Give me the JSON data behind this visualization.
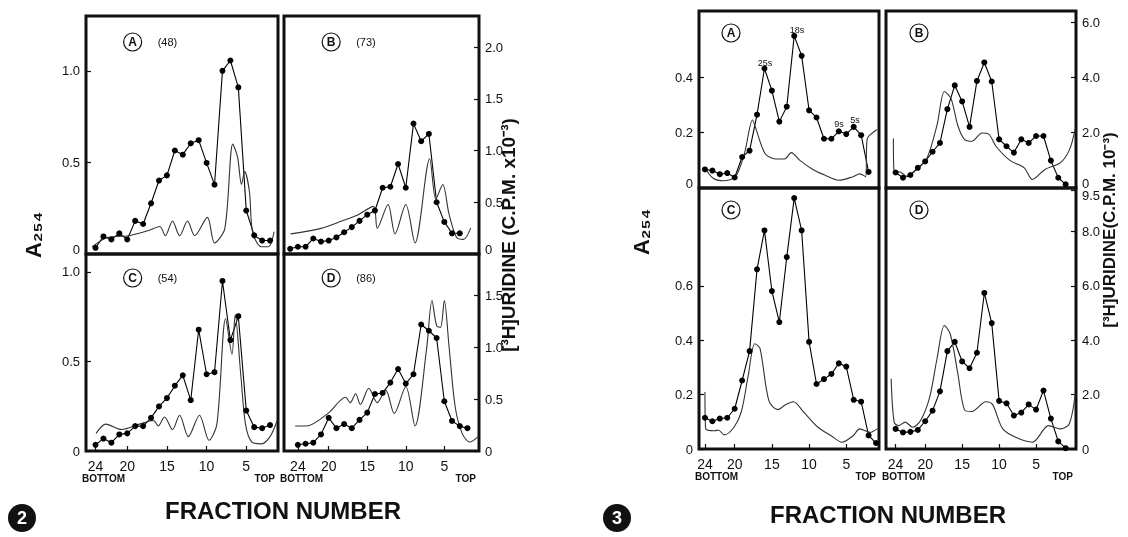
{
  "chart_data": [
    {
      "type": "line",
      "title": "A",
      "subtitle": "(48)",
      "ylabel": "A₂₅₄",
      "xlim": [
        25.2,
        1.0
      ],
      "ylim": [
        0,
        1.3
      ],
      "y2lim": [
        0,
        2.3
      ],
      "yticks": [
        0,
        0.5,
        {
          "value": 1,
          "label": "1.0"
        }
      ],
      "tick_labels": "y",
      "series": [
        {
          "color": "#000000",
          "marker": "circle",
          "axis": "y2",
          "x": [
            24,
            23,
            22,
            21,
            20,
            19,
            18,
            17,
            16,
            15,
            14,
            13,
            12,
            11,
            10,
            9,
            8,
            7,
            6,
            5,
            4,
            3,
            2
          ],
          "values": [
            0.06,
            0.17,
            0.14,
            0.2,
            0.14,
            0.32,
            0.29,
            0.49,
            0.71,
            0.76,
            1.0,
            0.96,
            1.07,
            1.1,
            0.88,
            0.67,
            1.77,
            1.87,
            1.61,
            0.42,
            0.18,
            0.13,
            0.13
          ]
        },
        {
          "color": "#333333",
          "marker": "none",
          "x": [
            24.4,
            22.5,
            19.8,
            17.2,
            15.9,
            15.2,
            14.3,
            13.4,
            12.4,
            11.5,
            9.9,
            9.0,
            7.7,
            6.7,
            6.1,
            5.6,
            5.2,
            4.6,
            4.2,
            3.1,
            2.2,
            1.5
          ],
          "values": [
            0.04,
            0.09,
            0.1,
            0.13,
            0.15,
            0.1,
            0.18,
            0.1,
            0.18,
            0.1,
            0.2,
            0.06,
            0.14,
            0.6,
            0.53,
            0.38,
            0.45,
            0.34,
            0.12,
            0.04,
            0.04,
            0.12
          ]
        }
      ]
    },
    {
      "type": "line",
      "title": "B",
      "subtitle": "(73)",
      "y2label": "[³H]URIDINE (C.P.M. x10⁻³)",
      "xlim": [
        25.8,
        0.5
      ],
      "ylim": [
        0,
        1.3
      ],
      "y2lim": [
        0,
        2.3
      ],
      "y2ticks": [
        0,
        0.5,
        {
          "value": 1,
          "label": "1.0"
        },
        1.5,
        {
          "value": 2,
          "label": "2.0"
        }
      ],
      "tick_labels": "y",
      "series": [
        {
          "color": "#000000",
          "marker": "circle",
          "axis": "y2",
          "x": [
            25,
            24,
            23,
            22,
            21,
            20,
            19,
            18,
            17,
            16,
            15,
            14,
            13,
            12,
            11,
            10,
            9,
            8,
            7,
            6,
            5,
            4,
            3
          ],
          "values": [
            0.05,
            0.07,
            0.07,
            0.15,
            0.12,
            0.13,
            0.16,
            0.21,
            0.26,
            0.32,
            0.38,
            0.42,
            0.64,
            0.65,
            0.87,
            0.64,
            1.26,
            1.09,
            1.16,
            0.5,
            0.31,
            0.2,
            0.2
          ]
        },
        {
          "color": "#333333",
          "marker": "none",
          "x": [
            24.9,
            21,
            18.3,
            16.4,
            14.2,
            13.7,
            12.3,
            11.4,
            10,
            8.8,
            6.9,
            6.1,
            5.2,
            4.4,
            3.4,
            2.5,
            1.6
          ],
          "values": [
            0.11,
            0.14,
            0.18,
            0.21,
            0.26,
            0.14,
            0.27,
            0.11,
            0.27,
            0.06,
            0.52,
            0.3,
            0.38,
            0.22,
            0.09,
            0.08,
            0.14
          ]
        }
      ]
    },
    {
      "type": "line",
      "title": "C",
      "subtitle": "(54)",
      "xlabel": "FRACTION NUMBER",
      "annotations": [
        "BOTTOM",
        "TOP",
        "2"
      ],
      "xlim": [
        25.2,
        1.0
      ],
      "ylim": [
        0,
        1.1
      ],
      "y2lim": [
        0,
        1.9
      ],
      "xticks": [
        24,
        20,
        15,
        10,
        5
      ],
      "yticks": [
        0,
        0.5,
        {
          "value": 1,
          "label": "1.0"
        }
      ],
      "series": [
        {
          "color": "#000000",
          "marker": "circle",
          "axis": "y2",
          "x": [
            24,
            23,
            22,
            21,
            20,
            19,
            18,
            17,
            16,
            15,
            14,
            13,
            12,
            11,
            10,
            9,
            8,
            7,
            6,
            5,
            4,
            3,
            2
          ],
          "values": [
            0.06,
            0.12,
            0.08,
            0.16,
            0.17,
            0.24,
            0.24,
            0.32,
            0.43,
            0.51,
            0.63,
            0.73,
            0.49,
            1.17,
            0.74,
            0.76,
            1.64,
            1.07,
            1.3,
            0.39,
            0.23,
            0.22,
            0.25
          ]
        },
        {
          "color": "#333333",
          "marker": "none",
          "x": [
            23.9,
            22.7,
            20.7,
            18.5,
            16.7,
            16.1,
            15.3,
            14.3,
            13.4,
            12.3,
            10.9,
            9.7,
            8.7,
            7.6,
            6.8,
            6.4,
            5.7,
            5.1,
            4.3,
            3.1,
            2,
            1.1
          ],
          "values": [
            0.1,
            0.15,
            0.12,
            0.15,
            0.17,
            0.14,
            0.19,
            0.12,
            0.2,
            0.08,
            0.2,
            0.06,
            0.15,
            0.74,
            0.54,
            0.76,
            0.43,
            0.15,
            0.05,
            0.04,
            0.08,
            0.17
          ]
        }
      ]
    },
    {
      "type": "line",
      "title": "D",
      "subtitle": "(86)",
      "annotations": [
        "BOTTOM",
        "TOP"
      ],
      "xlim": [
        25.8,
        0.5
      ],
      "ylim": [
        0,
        1.1
      ],
      "y2lim": [
        0,
        1.9
      ],
      "xticks": [
        24,
        20,
        15,
        10,
        5
      ],
      "y2ticks": [
        0,
        0.5,
        {
          "value": 1,
          "label": "1.0"
        },
        1.5
      ],
      "series": [
        {
          "color": "#000000",
          "marker": "circle",
          "axis": "y2",
          "x": [
            24,
            23,
            22,
            21,
            20,
            19,
            18,
            17,
            16,
            15,
            14,
            13,
            12,
            11,
            10,
            9,
            8,
            7,
            6,
            5,
            4,
            3,
            2
          ],
          "values": [
            0.06,
            0.07,
            0.08,
            0.16,
            0.32,
            0.22,
            0.26,
            0.22,
            0.3,
            0.37,
            0.55,
            0.56,
            0.66,
            0.79,
            0.65,
            0.74,
            1.22,
            1.16,
            1.09,
            0.48,
            0.29,
            0.24,
            0.22
          ]
        },
        {
          "color": "#333333",
          "marker": "none",
          "x": [
            24.3,
            22.9,
            20.1,
            17.8,
            17.2,
            16.5,
            15.9,
            14.8,
            13.7,
            12.6,
            11.5,
            10,
            8.8,
            7.3,
            6.6,
            6,
            5.5,
            5,
            4.4,
            3.6,
            2.7,
            1.7,
            0.6
          ],
          "values": [
            0.14,
            0.14,
            0.21,
            0.3,
            0.27,
            0.32,
            0.26,
            0.35,
            0.27,
            0.34,
            0.21,
            0.36,
            0.14,
            0.57,
            0.84,
            0.7,
            0.69,
            0.84,
            0.59,
            0.25,
            0.1,
            0.05,
            0.08
          ]
        }
      ]
    },
    {
      "type": "line",
      "title": "A",
      "ylabel": "A₂₅₄",
      "annotations": [
        "25s",
        "18s",
        "9s",
        "5s"
      ],
      "xlim": [
        24.8,
        0.6
      ],
      "ylim": [
        0,
        0.64
      ],
      "y2lim": [
        0,
        6.4
      ],
      "yticks": [
        0,
        0.2,
        0.4
      ],
      "tick_labels": "y",
      "series": [
        {
          "color": "#000000",
          "marker": "circle",
          "axis": "y2",
          "x": [
            24,
            23,
            22,
            21,
            20,
            19,
            18,
            17,
            16,
            15,
            14,
            13,
            12,
            11,
            10,
            9,
            8,
            7,
            6,
            5,
            4,
            3,
            2
          ],
          "values": [
            0.67,
            0.63,
            0.5,
            0.54,
            0.38,
            1.12,
            1.35,
            2.65,
            4.32,
            3.52,
            2.4,
            2.94,
            5.5,
            4.78,
            2.81,
            2.55,
            1.78,
            1.78,
            2.05,
            1.95,
            2.21,
            1.91,
            0.58
          ]
        },
        {
          "color": "#333333",
          "marker": "none",
          "x": [
            24,
            22.9,
            21.5,
            19.9,
            18.7,
            17.6,
            17.1,
            15.9,
            14.5,
            13.3,
            12.4,
            11.2,
            9.5,
            7.9,
            6,
            4.1,
            3.2,
            2.4,
            2.2,
            0.95
          ],
          "values": [
            0.073,
            0.035,
            0.026,
            0.041,
            0.124,
            0.246,
            0.21,
            0.124,
            0.105,
            0.105,
            0.128,
            0.099,
            0.067,
            0.047,
            0.028,
            0.041,
            0.051,
            0.041,
            0.176,
            0.21
          ]
        }
      ]
    },
    {
      "type": "line",
      "title": "B",
      "y2label": "[³H]URIDINE(C.P.M. 10⁻³)",
      "xlim": [
        25.3,
        -0.4
      ],
      "ylim": [
        0,
        0.64
      ],
      "y2lim": [
        0,
        6.4
      ],
      "y2ticks": [
        0,
        {
          "value": 2,
          "label": "2.0"
        },
        {
          "value": 4,
          "label": "4.0"
        },
        {
          "value": 6,
          "label": "6.0"
        }
      ],
      "tick_labels": "y",
      "series": [
        {
          "color": "#000000",
          "marker": "circle",
          "axis": "y2",
          "x": [
            24,
            23,
            22,
            21,
            20,
            19,
            18,
            17,
            16,
            15,
            14,
            13,
            12,
            11,
            10,
            9,
            8,
            7,
            6,
            5,
            4,
            3,
            2,
            1
          ],
          "values": [
            0.56,
            0.37,
            0.47,
            0.73,
            0.96,
            1.31,
            1.63,
            2.85,
            3.71,
            3.13,
            2.21,
            3.87,
            4.54,
            3.85,
            1.76,
            1.51,
            1.28,
            1.76,
            1.63,
            1.88,
            1.88,
            0.99,
            0.37,
            0.13
          ]
        },
        {
          "color": "#333333",
          "marker": "none",
          "x": [
            24.3,
            24.2,
            23.4,
            22.4,
            21.3,
            19.8,
            18.4,
            17.4,
            16.5,
            15.6,
            14.7,
            13.7,
            12.3,
            11.4,
            10.4,
            8.5,
            6.6,
            5.5,
            3.8,
            1.7,
            0.5,
            -0.3
          ],
          "values": [
            0.178,
            0.06,
            0.058,
            0.041,
            0.064,
            0.105,
            0.227,
            0.349,
            0.323,
            0.227,
            0.176,
            0.169,
            0.199,
            0.195,
            0.15,
            0.099,
            0.073,
            0.031,
            0.067,
            0.092,
            0.137,
            0.214
          ]
        }
      ]
    },
    {
      "type": "line",
      "title": "C",
      "xlabel": "FRACTION NUMBER",
      "annotations": [
        "BOTTOM",
        "TOP",
        "3"
      ],
      "xlim": [
        24.8,
        0.6
      ],
      "ylim": [
        0,
        0.96
      ],
      "y2lim": [
        0,
        9.6
      ],
      "xticks": [
        24,
        20,
        15,
        10,
        5
      ],
      "yticks": [
        0,
        0.2,
        0.4,
        0.6
      ],
      "series": [
        {
          "color": "#000000",
          "marker": "circle",
          "axis": "y2",
          "x": [
            24,
            23,
            22,
            21,
            20,
            19,
            18,
            17,
            16,
            15,
            14,
            13,
            12,
            11,
            10,
            9,
            8,
            7,
            6,
            5,
            4,
            3,
            2,
            1
          ],
          "values": [
            1.15,
            1.02,
            1.12,
            1.15,
            1.48,
            2.52,
            3.6,
            6.61,
            8.04,
            5.81,
            4.67,
            7.06,
            9.23,
            8.04,
            3.94,
            2.39,
            2.57,
            2.76,
            3.15,
            3.03,
            1.81,
            1.74,
            0.5,
            0.22
          ]
        },
        {
          "color": "#333333",
          "marker": "none",
          "x": [
            24,
            23.9,
            22.7,
            22.2,
            21.4,
            20.1,
            19.1,
            18.2,
            17.3,
            16.6,
            15.4,
            14.2,
            13.1,
            12.1,
            10.8,
            8.8,
            7,
            5.6,
            4.1,
            3.2,
            1.8,
            0.85
          ],
          "values": [
            0.209,
            0.074,
            0.067,
            0.07,
            0.052,
            0.08,
            0.138,
            0.267,
            0.387,
            0.37,
            0.177,
            0.145,
            0.164,
            0.174,
            0.138,
            0.08,
            0.048,
            0.025,
            0.048,
            0.074,
            0.061,
            0.074
          ]
        }
      ]
    },
    {
      "type": "line",
      "title": "D",
      "annotations": [
        "BOTTOM",
        "TOP"
      ],
      "xlim": [
        25.3,
        -0.4
      ],
      "ylim": [
        0,
        0.96
      ],
      "y2lim": [
        0,
        9.6
      ],
      "xticks": [
        24,
        20,
        15,
        10,
        5
      ],
      "y2ticks": [
        0,
        {
          "value": 2,
          "label": "2.0"
        },
        {
          "value": 4,
          "label": "4.0"
        },
        {
          "value": 6,
          "label": "6.0"
        },
        {
          "value": 8,
          "label": "8.0"
        },
        9.5
      ],
      "series": [
        {
          "color": "#000000",
          "marker": "circle",
          "axis": "y2",
          "x": [
            24,
            23,
            22,
            21,
            20,
            19,
            18,
            17,
            16,
            15,
            14,
            13,
            12,
            11,
            10,
            9,
            8,
            7,
            6,
            5,
            4,
            3,
            2,
            1
          ],
          "values": [
            0.74,
            0.61,
            0.63,
            0.7,
            1.02,
            1.41,
            2.12,
            3.6,
            3.94,
            3.22,
            2.97,
            3.54,
            5.74,
            4.63,
            1.77,
            1.68,
            1.23,
            1.34,
            1.64,
            1.45,
            2.15,
            1.12,
            0.28,
            0.03
          ]
        },
        {
          "color": "#333333",
          "marker": "none",
          "x": [
            24.6,
            24.2,
            23.6,
            22.7,
            21.7,
            20.6,
            19.4,
            18.4,
            17.4,
            16.6,
            15.6,
            14.7,
            13.7,
            11.8,
            10.9,
            9.5,
            7.6,
            5.5,
            3.3,
            1.7,
            0.5,
            -0.3
          ],
          "values": [
            0.257,
            0.099,
            0.086,
            0.099,
            0.08,
            0.106,
            0.19,
            0.332,
            0.454,
            0.422,
            0.28,
            0.145,
            0.138,
            0.174,
            0.164,
            0.074,
            0.041,
            0.025,
            0.086,
            0.074,
            0.093,
            0.203
          ]
        }
      ]
    }
  ]
}
